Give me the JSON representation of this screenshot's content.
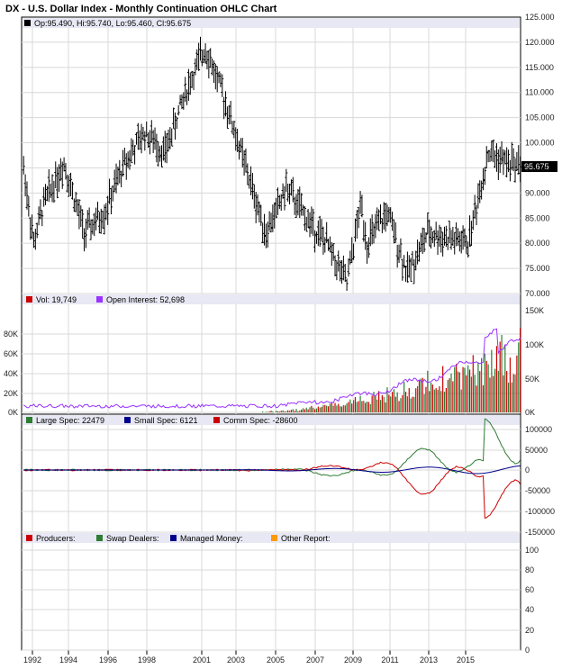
{
  "chart_data": {
    "type": "ohlc",
    "title": "DX - U.S. Dollar Index - Monthly Continuation OHLC Chart",
    "x_ticks": [
      "1992",
      "1994",
      "1996",
      "1998",
      "2001",
      "2003",
      "2005",
      "2007",
      "2009",
      "2011",
      "2013",
      "2015"
    ],
    "price_panel": {
      "legend": "Op:95.490, Hi:95.740, Lo:95.460, Cl:95.675",
      "last_value_label": "95.675",
      "y_ticks": [
        "125.000",
        "120.000",
        "115.000",
        "110.000",
        "105.000",
        "100.000",
        "95.000",
        "90.000",
        "85.000",
        "80.000",
        "75.000",
        "70.000"
      ],
      "ylim": [
        70,
        125
      ],
      "key_points": [
        {
          "x": "1992",
          "y": 95
        },
        {
          "x": "1992.5",
          "y": 80
        },
        {
          "x": "1993",
          "y": 88
        },
        {
          "x": "1994",
          "y": 96
        },
        {
          "x": "1995",
          "y": 82
        },
        {
          "x": "1996",
          "y": 86
        },
        {
          "x": "1997",
          "y": 96
        },
        {
          "x": "1998",
          "y": 102
        },
        {
          "x": "1999",
          "y": 98
        },
        {
          "x": "2000",
          "y": 110
        },
        {
          "x": "2001",
          "y": 119
        },
        {
          "x": "2002",
          "y": 108
        },
        {
          "x": "2003",
          "y": 95
        },
        {
          "x": "2004",
          "y": 82
        },
        {
          "x": "2005",
          "y": 91
        },
        {
          "x": "2006",
          "y": 85
        },
        {
          "x": "2007",
          "y": 80
        },
        {
          "x": "2008",
          "y": 72
        },
        {
          "x": "2008.7",
          "y": 88
        },
        {
          "x": "2009",
          "y": 80
        },
        {
          "x": "2010",
          "y": 86
        },
        {
          "x": "2011",
          "y": 74
        },
        {
          "x": "2012",
          "y": 82
        },
        {
          "x": "2013",
          "y": 81
        },
        {
          "x": "2014",
          "y": 80
        },
        {
          "x": "2015",
          "y": 98
        },
        {
          "x": "2016",
          "y": 96
        }
      ]
    },
    "volume_panel": {
      "legend": [
        {
          "label": "Vol: 19,749",
          "color": "#cc0000"
        },
        {
          "label": "Open Interest: 52,698",
          "color": "#9933ff"
        }
      ],
      "left_ticks": [
        "80K",
        "60K",
        "40K",
        "20K",
        "0K"
      ],
      "right_ticks": [
        "150K",
        "100K",
        "50K",
        "0K"
      ]
    },
    "cot_panel": {
      "legend": [
        {
          "label": "Large Spec: 22479",
          "color": "#2e7d32"
        },
        {
          "label": "Small Spec: 6121",
          "color": "#00008b"
        },
        {
          "label": "Comm Spec: -28600",
          "color": "#cc0000"
        }
      ],
      "right_ticks": [
        "100000",
        "50000",
        "0",
        "-50000",
        "-100000",
        "-150000"
      ]
    },
    "cot_panel_2": {
      "legend": [
        {
          "label": "Producers:",
          "color": "#cc0000"
        },
        {
          "label": "Swap Dealers:",
          "color": "#2e7d32"
        },
        {
          "label": "Managed Money:",
          "color": "#00008b"
        },
        {
          "label": "Other Report:",
          "color": "#ff9900"
        }
      ],
      "right_ticks": [
        "100",
        "80",
        "60",
        "40",
        "20",
        "0"
      ]
    }
  }
}
